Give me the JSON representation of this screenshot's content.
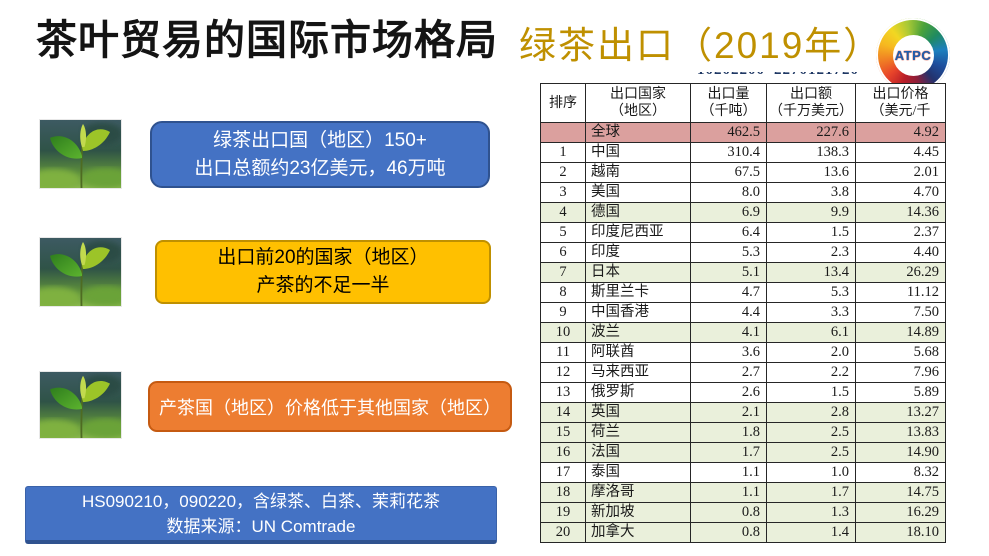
{
  "title": "茶叶贸易的国际市场格局",
  "subtitle": "绿茶出口（2019年）",
  "logo": {
    "text": "ATPC"
  },
  "callouts": {
    "stat": {
      "line1": "绿茶出口国（地区）150+",
      "line2": "出口总额约23亿美元，46万吨"
    },
    "top20": {
      "line1": "出口前20的国家（地区）",
      "line2": "产茶的不足一半"
    },
    "price": {
      "line1": "产茶国（地区）价格低于其他国家（地区）"
    },
    "source": {
      "line1": "HS090210，090220，含绿茶、白茶、茉莉花茶",
      "line2": "数据来源：UN Comtrade"
    }
  },
  "table": {
    "clipped_top": [
      "102022000",
      "2270121720"
    ],
    "headers": [
      [
        "排序"
      ],
      [
        "出口国家",
        "（地区）"
      ],
      [
        "出口量",
        "（千吨）"
      ],
      [
        "出口额",
        "（千万美元）"
      ],
      [
        "出口价格",
        "（美元/千"
      ]
    ],
    "rows": [
      {
        "rank": "",
        "country": "全球",
        "qty": "462.5",
        "value": "227.6",
        "price": "4.92",
        "hl": "pink"
      },
      {
        "rank": "1",
        "country": "中国",
        "qty": "310.4",
        "value": "138.3",
        "price": "4.45",
        "hl": ""
      },
      {
        "rank": "2",
        "country": "越南",
        "qty": "67.5",
        "value": "13.6",
        "price": "2.01",
        "hl": ""
      },
      {
        "rank": "3",
        "country": "美国",
        "qty": "8.0",
        "value": "3.8",
        "price": "4.70",
        "hl": ""
      },
      {
        "rank": "4",
        "country": "德国",
        "qty": "6.9",
        "value": "9.9",
        "price": "14.36",
        "hl": "green"
      },
      {
        "rank": "5",
        "country": "印度尼西亚",
        "qty": "6.4",
        "value": "1.5",
        "price": "2.37",
        "hl": ""
      },
      {
        "rank": "6",
        "country": "印度",
        "qty": "5.3",
        "value": "2.3",
        "price": "4.40",
        "hl": ""
      },
      {
        "rank": "7",
        "country": "日本",
        "qty": "5.1",
        "value": "13.4",
        "price": "26.29",
        "hl": "green"
      },
      {
        "rank": "8",
        "country": "斯里兰卡",
        "qty": "4.7",
        "value": "5.3",
        "price": "11.12",
        "hl": ""
      },
      {
        "rank": "9",
        "country": "中国香港",
        "qty": "4.4",
        "value": "3.3",
        "price": "7.50",
        "hl": ""
      },
      {
        "rank": "10",
        "country": "波兰",
        "qty": "4.1",
        "value": "6.1",
        "price": "14.89",
        "hl": "green"
      },
      {
        "rank": "11",
        "country": "阿联酋",
        "qty": "3.6",
        "value": "2.0",
        "price": "5.68",
        "hl": ""
      },
      {
        "rank": "12",
        "country": "马来西亚",
        "qty": "2.7",
        "value": "2.2",
        "price": "7.96",
        "hl": ""
      },
      {
        "rank": "13",
        "country": "俄罗斯",
        "qty": "2.6",
        "value": "1.5",
        "price": "5.89",
        "hl": ""
      },
      {
        "rank": "14",
        "country": "英国",
        "qty": "2.1",
        "value": "2.8",
        "price": "13.27",
        "hl": "green"
      },
      {
        "rank": "15",
        "country": "荷兰",
        "qty": "1.8",
        "value": "2.5",
        "price": "13.83",
        "hl": "green"
      },
      {
        "rank": "16",
        "country": "法国",
        "qty": "1.7",
        "value": "2.5",
        "price": "14.90",
        "hl": "green"
      },
      {
        "rank": "17",
        "country": "泰国",
        "qty": "1.1",
        "value": "1.0",
        "price": "8.32",
        "hl": ""
      },
      {
        "rank": "18",
        "country": "摩洛哥",
        "qty": "1.1",
        "value": "1.7",
        "price": "14.75",
        "hl": "green"
      },
      {
        "rank": "19",
        "country": "新加坡",
        "qty": "0.8",
        "value": "1.3",
        "price": "16.29",
        "hl": "green"
      },
      {
        "rank": "20",
        "country": "加拿大",
        "qty": "0.8",
        "value": "1.4",
        "price": "18.10",
        "hl": "green"
      }
    ]
  },
  "colors": {
    "accent_blue": "#4472C4",
    "blue_border": "#2F528F",
    "accent_yellow": "#FFC000",
    "yellow_border": "#BF9000",
    "accent_orange": "#ED7D31",
    "subtitle_gold": "#BF9000",
    "row_highlight_pink": "#DBA09E",
    "row_highlight_green": "#EAF0DB"
  }
}
